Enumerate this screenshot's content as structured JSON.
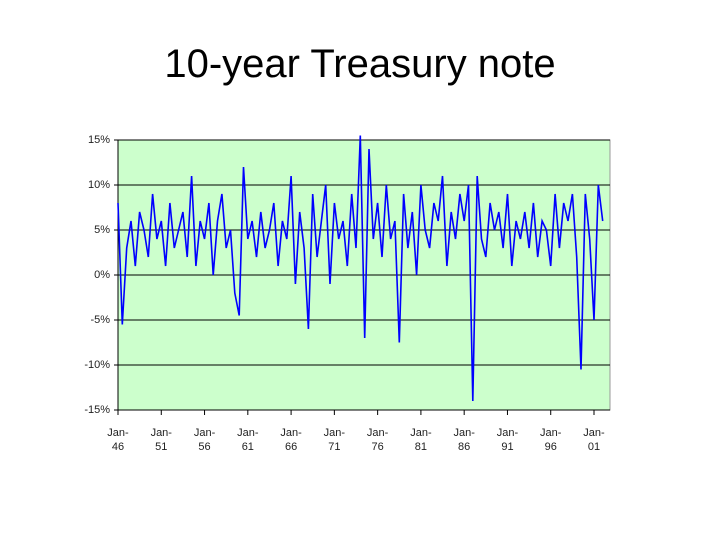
{
  "chart_data": {
    "type": "line",
    "title": "10-year Treasury note",
    "categories": [
      "Jan-46",
      null,
      null,
      null,
      null,
      null,
      null,
      null,
      null,
      null,
      "Jan-51",
      null,
      null,
      null,
      null,
      null,
      null,
      null,
      null,
      null,
      "Jan-56",
      null,
      null,
      null,
      null,
      null,
      null,
      null,
      null,
      null,
      "Jan-61",
      null,
      null,
      null,
      null,
      null,
      null,
      null,
      null,
      null,
      "Jan-66",
      null,
      null,
      null,
      null,
      null,
      null,
      null,
      null,
      null,
      "Jan-71",
      null,
      null,
      null,
      null,
      null,
      null,
      null,
      null,
      null,
      "Jan-76",
      null,
      null,
      null,
      null,
      null,
      null,
      null,
      null,
      null,
      "Jan-81",
      null,
      null,
      null,
      null,
      null,
      null,
      null,
      null,
      null,
      "Jan-86",
      null,
      null,
      null,
      null,
      null,
      null,
      null,
      null,
      null,
      "Jan-91",
      null,
      null,
      null,
      null,
      null,
      null,
      null,
      null,
      null,
      "Jan-96",
      null,
      null,
      null,
      null,
      null,
      null,
      null,
      null,
      null,
      "Jan-01",
      null,
      null
    ],
    "series": [
      {
        "name": "10-year Treasury note",
        "color": "#0000ff",
        "values": [
          8,
          -5.5,
          3,
          6,
          1,
          7,
          5,
          2,
          9,
          4,
          6,
          1,
          8,
          3,
          5,
          7,
          2,
          11,
          1,
          6,
          4,
          8,
          0,
          6,
          9,
          3,
          5,
          -2,
          -4.5,
          12,
          4,
          6,
          2,
          7,
          3,
          5,
          8,
          1,
          6,
          4,
          11,
          -1,
          7,
          3,
          -6,
          9,
          2,
          6,
          10,
          -1,
          8,
          4,
          6,
          1,
          9,
          3,
          15.5,
          -7,
          14,
          4,
          8,
          2,
          10,
          4,
          6,
          -7.5,
          9,
          3,
          7,
          0,
          10,
          5,
          3,
          8,
          6,
          11,
          1,
          7,
          4,
          9,
          6,
          10,
          -14,
          11,
          4,
          2,
          8,
          5,
          7,
          3,
          9,
          1,
          6,
          4,
          7,
          3,
          8,
          2,
          6,
          5,
          1,
          9,
          3,
          8,
          6,
          9,
          2,
          -10.5,
          9,
          4,
          -5,
          10,
          6
        ]
      }
    ],
    "ylim": [
      -15,
      15
    ],
    "yticks": [
      {
        "value": -15,
        "label": "-15%"
      },
      {
        "value": -10,
        "label": "-10%"
      },
      {
        "value": -5,
        "label": "-5%"
      },
      {
        "value": 0,
        "label": "0%"
      },
      {
        "value": 5,
        "label": "5%"
      },
      {
        "value": 10,
        "label": "10%"
      },
      {
        "value": 15,
        "label": "15%"
      }
    ],
    "grid": true,
    "background": "#ccffcc"
  }
}
